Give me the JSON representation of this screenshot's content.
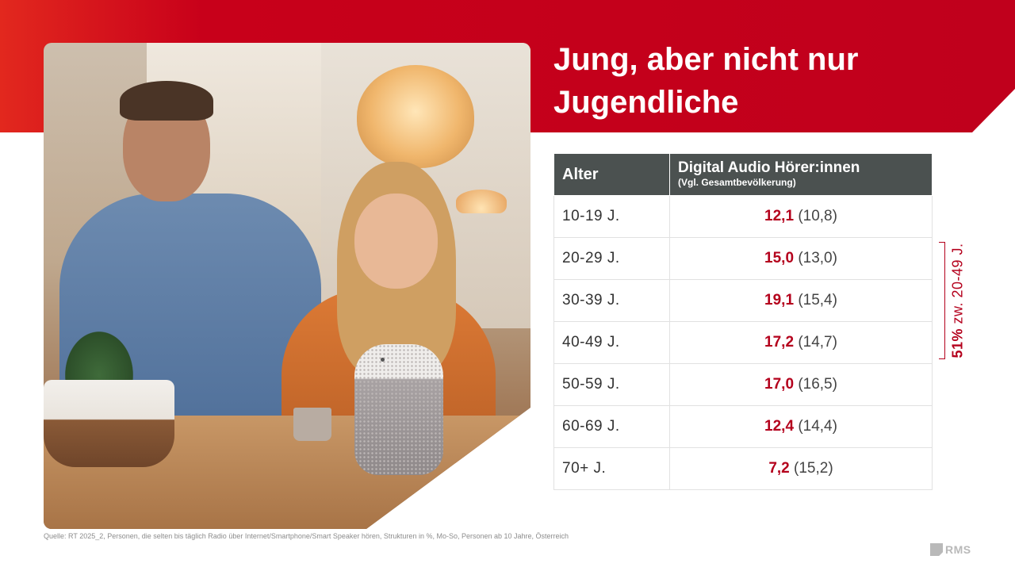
{
  "slide": {
    "title": "Jung, aber nicht nur Jugendliche"
  },
  "table": {
    "header_age": "Alter",
    "header_value": "Digital Audio Hörer:innen",
    "header_value_sub": "(Vgl. Gesamtbevölkerung)",
    "rows": [
      {
        "age": "10-19 J.",
        "value": "12,1",
        "comparison": "(10,8)"
      },
      {
        "age": "20-29 J.",
        "value": "15,0",
        "comparison": "(13,0)"
      },
      {
        "age": "30-39 J.",
        "value": "19,1",
        "comparison": "(15,4)"
      },
      {
        "age": "40-49 J.",
        "value": "17,2",
        "comparison": "(14,7)"
      },
      {
        "age": "50-59 J.",
        "value": "17,0",
        "comparison": "(16,5)"
      },
      {
        "age": "60-69 J.",
        "value": "12,4",
        "comparison": "(14,4)"
      },
      {
        "age": "70+ J.",
        "value": "7,2",
        "comparison": "(15,2)"
      }
    ]
  },
  "annotation": {
    "percent": "51%",
    "text": "zw. 20-49 J."
  },
  "footer": {
    "source": "Quelle: RT 2025_2, Personen, die selten bis täglich Radio über Internet/Smartphone/Smart Speaker hören, Strukturen in %, Mo-So, Personen ab 10 Jahre, Österreich",
    "logo": "RMS"
  },
  "colors": {
    "brand_red": "#c0001c",
    "highlight_red": "#b4001c",
    "header_gray": "#4b5150"
  }
}
